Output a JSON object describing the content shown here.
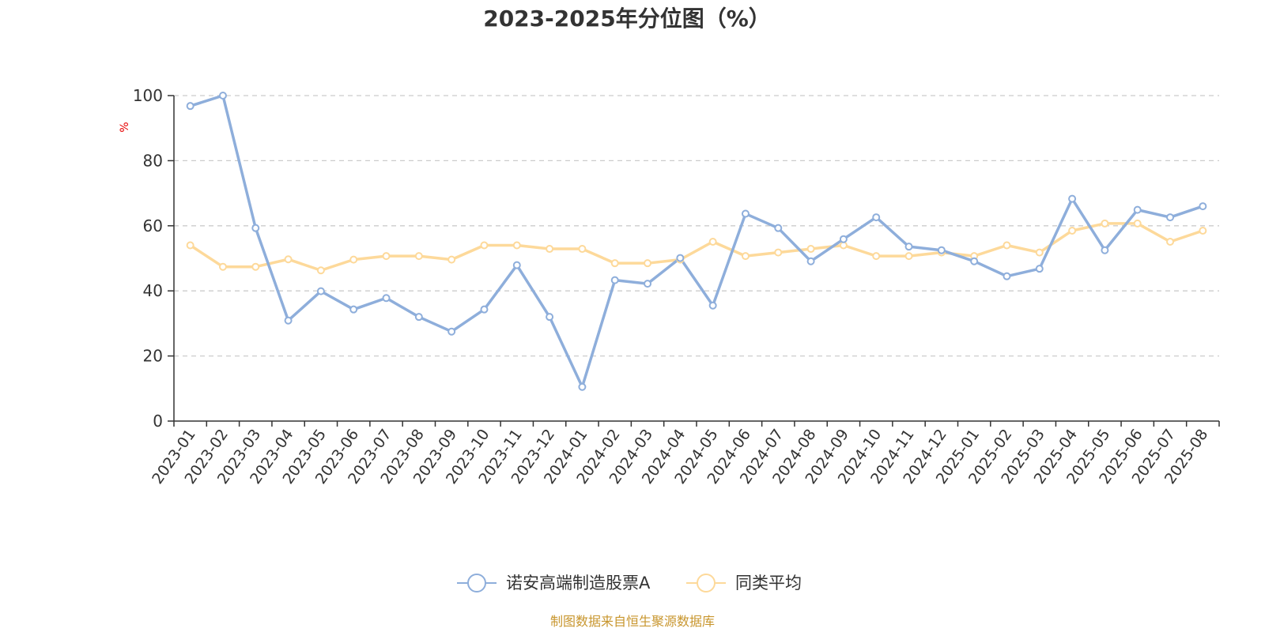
{
  "chart_data": {
    "type": "line",
    "title": "2023-2025年分位图（%）",
    "y_unit": "%",
    "ylim": [
      0,
      100
    ],
    "y_ticks": [
      "0",
      "20",
      "40",
      "60",
      "80",
      "100"
    ],
    "grid": "horizontal dashed",
    "legend_position": "bottom-center",
    "categories": [
      "2023-01",
      "2023-02",
      "2023-03",
      "2023-04",
      "2023-05",
      "2023-06",
      "2023-07",
      "2023-08",
      "2023-09",
      "2023-10",
      "2023-11",
      "2023-12",
      "2024-01",
      "2024-02",
      "2024-03",
      "2024-04",
      "2024-05",
      "2024-06",
      "2024-07",
      "2024-08",
      "2024-09",
      "2024-10",
      "2024-11",
      "2024-12",
      "2025-01",
      "2025-02",
      "2025-03",
      "2025-04",
      "2025-05",
      "2025-06",
      "2025-07",
      "2025-08"
    ],
    "series": [
      {
        "name": "诺安高端制造股票A",
        "color": "#8eaedb",
        "values": [
          96.8,
          100,
          59.3,
          30.9,
          39.9,
          34.3,
          37.8,
          32.0,
          27.5,
          34.3,
          47.9,
          32.0,
          10.5,
          43.3,
          42.2,
          50.1,
          35.5,
          63.7,
          59.3,
          49.1,
          55.9,
          62.6,
          53.6,
          52.5,
          49.1,
          44.5,
          46.8,
          68.3,
          52.5,
          64.9,
          62.6,
          66.0
        ]
      },
      {
        "name": "同类平均",
        "color": "#fdd99a",
        "values": [
          54.0,
          47.4,
          47.4,
          49.7,
          46.3,
          49.6,
          50.7,
          50.7,
          49.6,
          54.0,
          54.0,
          52.9,
          52.9,
          48.5,
          48.5,
          49.6,
          55.1,
          50.7,
          51.8,
          52.9,
          54.0,
          50.7,
          50.7,
          51.8,
          50.7,
          54.0,
          51.8,
          58.5,
          60.7,
          60.7,
          55.1,
          58.5
        ]
      }
    ]
  },
  "footer": {
    "source": "制图数据来自恒生聚源数据库"
  }
}
